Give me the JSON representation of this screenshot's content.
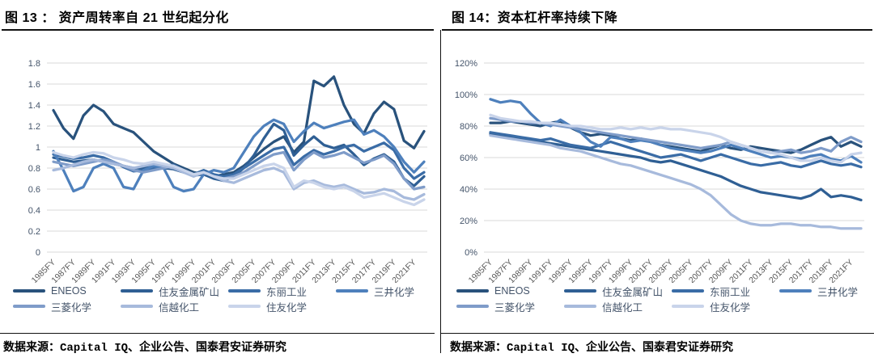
{
  "figures": [
    {
      "heading": "图 13 ： 资产周转率自 21 世纪起分化",
      "source": "数据来源：Capital IQ、企业公告、国泰君安证券研究"
    },
    {
      "heading": "图 14：资本杠杆率持续下降",
      "source": "数据来源：Capital IQ、企业公告、国泰君安证券研究"
    }
  ],
  "colors": {
    "gridline": "#d9d9d9",
    "y_axis_text": "#44546a",
    "x_axis_text": "#595959",
    "legend_text": "#44546a",
    "rule": "#111111"
  },
  "chart_data": [
    {
      "type": "line",
      "title": "资产周转率自 21 世纪起分化",
      "value_format": "number",
      "grid": "horizontal",
      "legend_position": "bottom",
      "ylim": [
        0,
        1.8
      ],
      "ytick_values": [
        0,
        0.2,
        0.4,
        0.6,
        0.8,
        1.0,
        1.2,
        1.4,
        1.6,
        1.8
      ],
      "ytick_labels": [
        "0",
        "0.2",
        "0.4",
        "0.6",
        "0.8",
        "1",
        "1.2",
        "1.4",
        "1.6",
        "1.8"
      ],
      "x": [
        1985,
        1986,
        1987,
        1988,
        1989,
        1990,
        1991,
        1992,
        1993,
        1994,
        1995,
        1996,
        1997,
        1998,
        1999,
        2000,
        2001,
        2002,
        2003,
        2004,
        2005,
        2006,
        2007,
        2008,
        2009,
        2010,
        2011,
        2012,
        2013,
        2014,
        2015,
        2016,
        2017,
        2018,
        2019,
        2020,
        2021,
        2022
      ],
      "x_tick_labels": [
        "1985FY",
        "1987FY",
        "1989FY",
        "1991FY",
        "1993FY",
        "1995FY",
        "1997FY",
        "1999FY",
        "2001FY",
        "2003FY",
        "2005FY",
        "2007FY",
        "2009FY",
        "2011FY",
        "2013FY",
        "2015FY",
        "2017FY",
        "2019FY",
        "2021FY"
      ],
      "series": [
        {
          "key": "eneos",
          "name": "ENEOS",
          "color": "#29527c",
          "values": [
            1.35,
            1.18,
            1.08,
            1.3,
            1.4,
            1.34,
            1.22,
            1.18,
            1.14,
            1.05,
            0.96,
            0.9,
            0.84,
            0.8,
            0.76,
            0.74,
            0.72,
            0.74,
            0.76,
            0.82,
            0.9,
            0.98,
            1.05,
            1.1,
            0.95,
            1.05,
            1.63,
            1.58,
            1.67,
            1.4,
            1.22,
            1.13,
            1.32,
            1.43,
            1.36,
            1.06,
            0.99,
            1.15
          ]
        },
        {
          "key": "sumitomo-metal-mining",
          "name": "住友金属矿山",
          "color": "#2f5f94",
          "values": [
            0.9,
            0.88,
            0.86,
            0.87,
            0.88,
            0.86,
            0.84,
            0.82,
            0.8,
            0.8,
            0.82,
            0.8,
            0.79,
            0.76,
            0.73,
            0.74,
            0.7,
            0.68,
            0.72,
            0.8,
            0.92,
            1.08,
            1.22,
            1.16,
            0.92,
            1.02,
            1.1,
            1.02,
            0.99,
            1.02,
            0.93,
            0.83,
            0.89,
            0.93,
            0.86,
            0.7,
            0.63,
            0.72
          ]
        },
        {
          "key": "toray",
          "name": "东丽工业",
          "color": "#3a6ca6",
          "values": [
            0.93,
            0.91,
            0.89,
            0.9,
            0.92,
            0.9,
            0.86,
            0.81,
            0.77,
            0.78,
            0.8,
            0.82,
            0.83,
            0.78,
            0.74,
            0.78,
            0.74,
            0.72,
            0.74,
            0.8,
            0.86,
            0.92,
            0.98,
            1.0,
            0.83,
            0.91,
            0.97,
            0.93,
            0.96,
            1.0,
            1.02,
            0.96,
            1.0,
            1.04,
            0.97,
            0.8,
            0.7,
            0.76
          ]
        },
        {
          "key": "mitsui-chemicals",
          "name": "三井化学",
          "color": "#4e80bc",
          "values": [
            0.96,
            0.78,
            0.58,
            0.62,
            0.8,
            0.84,
            0.8,
            0.62,
            0.6,
            0.78,
            0.82,
            0.8,
            0.62,
            0.58,
            0.6,
            0.74,
            0.78,
            0.76,
            0.8,
            0.95,
            1.1,
            1.2,
            1.26,
            1.22,
            1.05,
            1.15,
            1.23,
            1.18,
            1.21,
            1.24,
            1.26,
            1.12,
            1.16,
            1.1,
            1.0,
            0.86,
            0.76,
            0.86
          ]
        },
        {
          "key": "mitsubishi-chemical",
          "name": "三菱化学",
          "color": "#7f9cc9",
          "values": [
            0.86,
            0.84,
            0.82,
            0.84,
            0.86,
            0.88,
            0.86,
            0.82,
            0.78,
            0.76,
            0.78,
            0.8,
            0.82,
            0.78,
            0.74,
            0.76,
            0.72,
            0.7,
            0.72,
            0.76,
            0.82,
            0.88,
            0.93,
            0.95,
            0.78,
            0.88,
            0.95,
            0.9,
            0.92,
            0.95,
            0.9,
            0.85,
            0.88,
            0.92,
            0.84,
            0.7,
            0.6,
            0.62
          ]
        },
        {
          "key": "shin-etsu",
          "name": "信越化工",
          "color": "#a7badc",
          "values": [
            0.78,
            0.8,
            0.83,
            0.86,
            0.88,
            0.86,
            0.84,
            0.82,
            0.8,
            0.82,
            0.84,
            0.82,
            0.8,
            0.76,
            0.72,
            0.76,
            0.72,
            0.68,
            0.66,
            0.7,
            0.74,
            0.78,
            0.8,
            0.76,
            0.6,
            0.66,
            0.68,
            0.64,
            0.62,
            0.64,
            0.6,
            0.56,
            0.57,
            0.6,
            0.58,
            0.52,
            0.5,
            0.55
          ]
        },
        {
          "key": "sumitomo-chemical",
          "name": "住友化学",
          "color": "#c9d4ea",
          "values": [
            0.95,
            0.92,
            0.9,
            0.93,
            0.95,
            0.94,
            0.9,
            0.88,
            0.85,
            0.84,
            0.86,
            0.84,
            0.82,
            0.78,
            0.74,
            0.76,
            0.72,
            0.7,
            0.7,
            0.74,
            0.78,
            0.82,
            0.84,
            0.8,
            0.62,
            0.68,
            0.66,
            0.62,
            0.6,
            0.62,
            0.58,
            0.52,
            0.54,
            0.56,
            0.52,
            0.48,
            0.45,
            0.5
          ]
        }
      ]
    },
    {
      "type": "line",
      "title": "资本杠杆率持续下降",
      "value_format": "percent",
      "grid": "horizontal",
      "legend_position": "bottom",
      "ylim": [
        0,
        120
      ],
      "ytick_values": [
        0,
        20,
        40,
        60,
        80,
        100,
        120
      ],
      "ytick_labels": [
        "0%",
        "20%",
        "40%",
        "60%",
        "80%",
        "100%",
        "120%"
      ],
      "x": [
        1985,
        1986,
        1987,
        1988,
        1989,
        1990,
        1991,
        1992,
        1993,
        1994,
        1995,
        1996,
        1997,
        1998,
        1999,
        2000,
        2001,
        2002,
        2003,
        2004,
        2005,
        2006,
        2007,
        2008,
        2009,
        2010,
        2011,
        2012,
        2013,
        2014,
        2015,
        2016,
        2017,
        2018,
        2019,
        2020,
        2021,
        2022
      ],
      "x_tick_labels": [
        "1985FY",
        "1987FY",
        "1989FY",
        "1991FY",
        "1993FY",
        "1995FY",
        "1997FY",
        "1999FY",
        "2001FY",
        "2003FY",
        "2005FY",
        "2007FY",
        "2009FY",
        "2011FY",
        "2013FY",
        "2015FY",
        "2017FY",
        "2019FY",
        "2021FY"
      ],
      "series": [
        {
          "key": "eneos",
          "name": "ENEOS",
          "color": "#29527c",
          "values": [
            82,
            82,
            83,
            82,
            81,
            80,
            82,
            83,
            79,
            76,
            74,
            75,
            74,
            72,
            71,
            72,
            70,
            68,
            67,
            66,
            65,
            64,
            66,
            68,
            66,
            65,
            67,
            66,
            65,
            64,
            63,
            65,
            68,
            71,
            73,
            67,
            70,
            67
          ]
        },
        {
          "key": "sumitomo-metal-mining",
          "name": "住友金属矿山",
          "color": "#2f5f94",
          "values": [
            75,
            74,
            73,
            72,
            71,
            70,
            69,
            68,
            67,
            66,
            65,
            64,
            63,
            62,
            61,
            60,
            58,
            57,
            58,
            56,
            54,
            52,
            50,
            48,
            45,
            42,
            40,
            38,
            37,
            36,
            35,
            34,
            36,
            40,
            35,
            36,
            35,
            33
          ]
        },
        {
          "key": "toray",
          "name": "东丽工业",
          "color": "#3a6ca6",
          "values": [
            76,
            75,
            74,
            73,
            72,
            71,
            72,
            70,
            68,
            67,
            66,
            68,
            70,
            68,
            66,
            64,
            62,
            60,
            61,
            62,
            60,
            58,
            60,
            62,
            60,
            58,
            56,
            55,
            56,
            57,
            55,
            54,
            56,
            58,
            56,
            55,
            56,
            54
          ]
        },
        {
          "key": "mitsui-chemicals",
          "name": "三井化学",
          "color": "#4e80bc",
          "values": [
            97,
            95,
            96,
            95,
            88,
            82,
            80,
            84,
            80,
            76,
            70,
            67,
            73,
            72,
            70,
            71,
            70,
            68,
            66,
            65,
            64,
            63,
            64,
            66,
            68,
            66,
            64,
            62,
            60,
            61,
            60,
            59,
            61,
            62,
            59,
            58,
            61,
            57
          ]
        },
        {
          "key": "mitsubishi-chemical",
          "name": "三菱化学",
          "color": "#7f9cc9",
          "values": [
            85,
            84,
            83,
            83,
            82,
            82,
            81,
            80,
            79,
            78,
            77,
            76,
            75,
            74,
            73,
            72,
            71,
            70,
            69,
            68,
            67,
            66,
            67,
            68,
            70,
            68,
            66,
            64,
            63,
            64,
            65,
            63,
            64,
            66,
            64,
            70,
            73,
            70
          ]
        },
        {
          "key": "shin-etsu",
          "name": "信越化工",
          "color": "#a7badc",
          "values": [
            74,
            73,
            72,
            71,
            70,
            69,
            68,
            66,
            65,
            64,
            62,
            60,
            58,
            56,
            55,
            53,
            51,
            49,
            47,
            45,
            43,
            40,
            36,
            30,
            24,
            20,
            18,
            17,
            17,
            18,
            18,
            17,
            17,
            16,
            16,
            15,
            15,
            15
          ]
        },
        {
          "key": "sumitomo-chemical",
          "name": "住友化学",
          "color": "#c9d4ea",
          "values": [
            87,
            85,
            84,
            83,
            83,
            82,
            82,
            81,
            80,
            80,
            79,
            78,
            78,
            79,
            78,
            79,
            78,
            79,
            78,
            78,
            77,
            76,
            75,
            73,
            70,
            68,
            66,
            64,
            63,
            62,
            60,
            58,
            58,
            60,
            58,
            57,
            62,
            63
          ]
        }
      ]
    }
  ]
}
